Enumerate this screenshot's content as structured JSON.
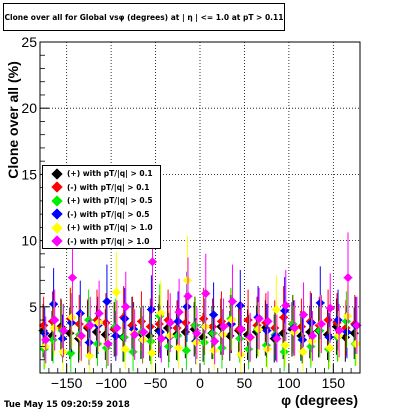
{
  "chart_data": {
    "type": "scatter",
    "title": "Clone over all for Global vsφ (degrees) at | η | <= 1.0 at pT > 0.11",
    "xlabel": "φ (degrees)",
    "ylabel": "Clone over all (%)",
    "xlim": [
      -180,
      180
    ],
    "ylim": [
      0,
      25
    ],
    "xticks": [
      "-150",
      "-100",
      "-50",
      "0",
      "50",
      "100",
      "150"
    ],
    "yticks": [
      "5",
      "10",
      "15",
      "20",
      "25"
    ],
    "grid": true,
    "legend_position": "middle-left",
    "series": [
      {
        "name": "(+) with pT/|q| > 0.1",
        "color": "#000000",
        "y": [
          3.2,
          2.8,
          3.5,
          3.0,
          2.6,
          3.4,
          3.1,
          2.9,
          3.3,
          2.7,
          3.6,
          3.0,
          2.8,
          3.2,
          3.4,
          2.9,
          3.1,
          3.3,
          2.7,
          3.0,
          3.5,
          2.8,
          3.2,
          2.9,
          3.1,
          3.4,
          2.6,
          3.0,
          3.3,
          2.8,
          3.1,
          3.2,
          2.9,
          3.5,
          2.7,
          3.0
        ]
      },
      {
        "name": "(-) with pT/|q| > 0.1",
        "color": "#ff0000",
        "y": [
          3.6,
          3.9,
          3.4,
          4.1,
          3.7,
          3.5,
          4.0,
          3.8,
          3.3,
          4.2,
          3.6,
          3.9,
          3.5,
          3.7,
          4.0,
          3.4,
          3.8,
          3.6,
          4.1,
          3.5,
          3.9,
          3.7,
          3.3,
          4.0,
          3.6,
          3.8,
          3.4,
          4.2,
          3.7,
          3.5,
          3.9,
          3.6,
          4.0,
          3.8,
          3.4,
          3.7
        ]
      },
      {
        "name": "(+) with pT/|q| > 0.5",
        "color": "#00ee00",
        "y": [
          1.8,
          2.5,
          3.2,
          1.5,
          2.9,
          4.0,
          2.2,
          1.9,
          3.5,
          2.7,
          1.6,
          3.1,
          2.4,
          4.3,
          2.0,
          2.8,
          1.7,
          3.6,
          2.3,
          3.0,
          1.9,
          4.1,
          2.6,
          1.8,
          3.3,
          2.1,
          2.9,
          1.6,
          3.7,
          2.5,
          2.0,
          3.2,
          1.8,
          2.7,
          3.9,
          2.2
        ]
      },
      {
        "name": "(-) with pT/|q| > 0.5",
        "color": "#0000ff",
        "y": [
          3.0,
          5.2,
          2.6,
          3.8,
          4.5,
          2.3,
          3.6,
          5.4,
          2.8,
          4.1,
          3.3,
          2.5,
          4.8,
          3.1,
          2.7,
          3.9,
          5.0,
          2.4,
          3.5,
          4.4,
          2.9,
          3.7,
          5.1,
          2.6,
          4.2,
          3.2,
          2.8,
          4.7,
          3.4,
          2.5,
          3.8,
          5.3,
          2.7,
          4.0,
          3.1,
          3.6
        ]
      },
      {
        "name": "(+) with pT/|q| > 1.0",
        "color": "#ffff00",
        "y": [
          2.0,
          3.4,
          1.6,
          4.2,
          2.7,
          1.3,
          3.8,
          2.2,
          6.1,
          1.8,
          3.0,
          2.5,
          1.5,
          4.5,
          2.8,
          1.9,
          7.0,
          2.3,
          3.5,
          1.7,
          2.9,
          4.0,
          1.4,
          2.6,
          3.3,
          1.8,
          4.8,
          2.1,
          3.1,
          1.6,
          2.4,
          3.7,
          1.9,
          2.8,
          4.3,
          2.2
        ]
      },
      {
        "name": "(-) with pT/|q| > 1.0",
        "color": "#ff00ff",
        "y": [
          2.5,
          4.0,
          3.2,
          7.2,
          2.8,
          3.6,
          4.5,
          2.2,
          3.4,
          5.0,
          2.9,
          3.1,
          8.4,
          2.6,
          3.8,
          4.6,
          5.8,
          3.0,
          6.0,
          2.4,
          3.5,
          5.4,
          3.3,
          2.7,
          4.1,
          3.9,
          2.6,
          5.1,
          3.4,
          4.4,
          2.8,
          3.7,
          4.9,
          3.2,
          7.2,
          3.6
        ]
      }
    ]
  },
  "footer": {
    "timestamp": "Tue May 15 09:20:59 2018"
  }
}
